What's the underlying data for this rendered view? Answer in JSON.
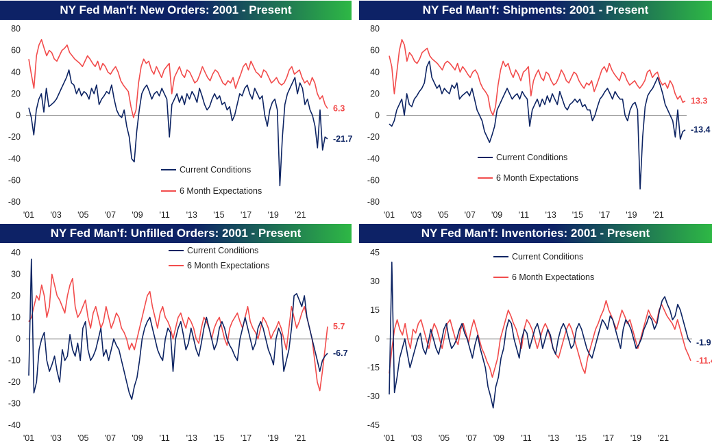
{
  "colors": {
    "current": "#0d2463",
    "expectations": "#f24c4c",
    "title_gradient_start": "#0d2266",
    "title_gradient_end": "#2eb845"
  },
  "legend": {
    "current": "Current Conditions",
    "expectations": "6 Month Expectations"
  },
  "chart_data": [
    {
      "type": "line",
      "title": "NY Fed Man'f: New Orders: 2001 - Present",
      "ylim": [
        -80,
        80
      ],
      "yticks": [
        "80",
        "60",
        "40",
        "20",
        "0",
        "-20",
        "-40",
        "-60",
        "-80"
      ],
      "xticks": [
        "'01",
        "'03",
        "'05",
        "'07",
        "'09",
        "'11",
        "'13",
        "'15",
        "'17",
        "'19",
        "'21"
      ],
      "end_labels": {
        "current": "-21.7",
        "expectations": "6.3"
      },
      "series": [
        {
          "name": "Current Conditions",
          "values": [
            7,
            -2,
            -18,
            5,
            15,
            20,
            3,
            25,
            8,
            10,
            12,
            15,
            20,
            25,
            30,
            35,
            42,
            30,
            28,
            20,
            25,
            18,
            22,
            20,
            15,
            25,
            20,
            28,
            10,
            15,
            18,
            22,
            20,
            28,
            15,
            5,
            0,
            -2,
            5,
            -10,
            -20,
            -40,
            -43,
            -15,
            5,
            20,
            25,
            28,
            22,
            15,
            20,
            22,
            18,
            25,
            20,
            15,
            -20,
            10,
            15,
            20,
            12,
            18,
            10,
            20,
            15,
            22,
            18,
            12,
            25,
            18,
            10,
            5,
            8,
            15,
            20,
            15,
            18,
            10,
            12,
            5,
            8,
            -5,
            0,
            10,
            20,
            18,
            25,
            28,
            20,
            15,
            25,
            20,
            15,
            18,
            0,
            -10,
            5,
            12,
            15,
            5,
            -65,
            -20,
            10,
            20,
            25,
            30,
            35,
            20,
            30,
            25,
            10,
            15,
            5,
            0,
            -10,
            -30,
            5,
            -32,
            -20,
            -21.7
          ]
        },
        {
          "name": "6 Month Expectations",
          "values": [
            52,
            38,
            25,
            55,
            65,
            70,
            62,
            55,
            60,
            58,
            52,
            50,
            55,
            60,
            62,
            65,
            58,
            55,
            52,
            50,
            48,
            45,
            50,
            55,
            52,
            48,
            45,
            50,
            42,
            48,
            45,
            40,
            38,
            42,
            45,
            40,
            32,
            28,
            25,
            22,
            8,
            -2,
            5,
            30,
            45,
            52,
            48,
            50,
            42,
            38,
            45,
            40,
            35,
            42,
            45,
            48,
            20,
            35,
            40,
            45,
            38,
            35,
            42,
            40,
            35,
            30,
            32,
            38,
            45,
            40,
            35,
            32,
            38,
            42,
            40,
            35,
            30,
            28,
            32,
            30,
            35,
            25,
            32,
            38,
            45,
            48,
            42,
            50,
            45,
            40,
            38,
            35,
            42,
            40,
            35,
            30,
            32,
            35,
            30,
            28,
            30,
            35,
            42,
            45,
            38,
            40,
            42,
            35,
            30,
            32,
            28,
            35,
            30,
            20,
            15,
            18,
            10,
            6.3
          ]
        }
      ]
    },
    {
      "type": "line",
      "title": "NY Fed Man'f: Shipments: 2001 - Present",
      "ylim": [
        -80,
        80
      ],
      "yticks": [
        "80",
        "60",
        "40",
        "20",
        "0",
        "-20",
        "-40",
        "-60",
        "-80"
      ],
      "xticks": [
        "'01",
        "'03",
        "'05",
        "'07",
        "'09",
        "'11",
        "'13",
        "'15",
        "'17",
        "'19",
        "'21"
      ],
      "end_labels": {
        "current": "-13.4",
        "expectations": "13.3"
      },
      "series": [
        {
          "name": "Current Conditions",
          "values": [
            -8,
            -10,
            -5,
            5,
            10,
            15,
            0,
            20,
            10,
            8,
            15,
            18,
            22,
            25,
            30,
            45,
            50,
            35,
            30,
            25,
            28,
            20,
            25,
            22,
            20,
            28,
            25,
            30,
            15,
            18,
            20,
            22,
            18,
            25,
            15,
            5,
            0,
            -5,
            -15,
            -20,
            -25,
            -18,
            -10,
            5,
            10,
            15,
            20,
            25,
            20,
            15,
            18,
            20,
            15,
            22,
            18,
            15,
            -10,
            5,
            10,
            15,
            8,
            15,
            10,
            18,
            12,
            20,
            15,
            10,
            22,
            15,
            8,
            5,
            10,
            12,
            15,
            12,
            15,
            8,
            10,
            5,
            5,
            -5,
            0,
            8,
            15,
            18,
            22,
            25,
            20,
            15,
            22,
            18,
            15,
            15,
            0,
            -5,
            5,
            10,
            12,
            5,
            -68,
            -20,
            8,
            18,
            22,
            25,
            30,
            35,
            28,
            20,
            10,
            5,
            0,
            -5,
            -20,
            5,
            -22,
            -15,
            -13.4
          ]
        },
        {
          "name": "6 Month Expectations",
          "values": [
            55,
            45,
            20,
            40,
            60,
            70,
            65,
            50,
            58,
            55,
            50,
            48,
            52,
            58,
            60,
            62,
            55,
            52,
            50,
            48,
            45,
            42,
            48,
            50,
            48,
            45,
            42,
            48,
            40,
            45,
            42,
            38,
            35,
            40,
            42,
            38,
            30,
            25,
            22,
            18,
            5,
            0,
            8,
            28,
            42,
            50,
            45,
            48,
            40,
            35,
            42,
            38,
            32,
            40,
            42,
            45,
            18,
            32,
            38,
            42,
            35,
            32,
            40,
            38,
            32,
            28,
            30,
            35,
            42,
            38,
            32,
            30,
            35,
            40,
            38,
            32,
            28,
            25,
            30,
            28,
            32,
            22,
            28,
            35,
            42,
            45,
            40,
            48,
            42,
            38,
            35,
            32,
            40,
            38,
            32,
            28,
            30,
            32,
            28,
            25,
            28,
            32,
            40,
            42,
            35,
            38,
            40,
            32,
            28,
            30,
            25,
            32,
            28,
            20,
            15,
            18,
            12,
            13.3
          ]
        }
      ]
    },
    {
      "type": "line",
      "title": "NY Fed Man'f: Unfilled Orders: 2001 - Present",
      "ylim": [
        -40,
        40
      ],
      "yticks": [
        "40",
        "30",
        "20",
        "10",
        "0",
        "-10",
        "-20",
        "-30",
        "-40"
      ],
      "xticks": [
        "'01",
        "'03",
        "'05",
        "'07",
        "'09",
        "'11",
        "'13",
        "'15",
        "'17",
        "'19",
        "'21"
      ],
      "end_labels": {
        "current": "-6.7",
        "expectations": "5.7"
      },
      "series": [
        {
          "name": "Current Conditions",
          "values": [
            -17,
            37,
            -25,
            -20,
            -5,
            0,
            3,
            -10,
            -15,
            -12,
            -8,
            -15,
            -20,
            -5,
            -10,
            -8,
            2,
            -5,
            -8,
            -2,
            -10,
            5,
            8,
            -5,
            -10,
            -8,
            -5,
            0,
            5,
            -8,
            -5,
            -10,
            -5,
            0,
            -3,
            -5,
            -10,
            -15,
            -20,
            -25,
            -28,
            -22,
            -18,
            -10,
            0,
            5,
            8,
            10,
            5,
            0,
            -5,
            -8,
            -10,
            0,
            5,
            3,
            -15,
            0,
            5,
            8,
            2,
            -5,
            -2,
            5,
            0,
            -5,
            -8,
            -2,
            5,
            10,
            5,
            0,
            -5,
            -2,
            5,
            8,
            5,
            0,
            -3,
            -5,
            -8,
            -10,
            0,
            5,
            10,
            5,
            0,
            -5,
            -2,
            5,
            8,
            5,
            0,
            -5,
            -8,
            -12,
            0,
            5,
            2,
            -15,
            -10,
            -5,
            5,
            20,
            21,
            18,
            15,
            20,
            10,
            5,
            0,
            -5,
            -10,
            -15,
            -10,
            -8,
            -6.7
          ]
        },
        {
          "name": "6 Month Expectations",
          "values": [
            8,
            10,
            15,
            20,
            18,
            25,
            20,
            10,
            15,
            30,
            25,
            20,
            18,
            15,
            12,
            20,
            25,
            28,
            15,
            10,
            12,
            15,
            18,
            10,
            5,
            12,
            15,
            10,
            5,
            8,
            15,
            10,
            5,
            8,
            12,
            10,
            5,
            3,
            0,
            -5,
            -2,
            -5,
            0,
            5,
            10,
            15,
            20,
            22,
            15,
            10,
            5,
            12,
            15,
            10,
            8,
            5,
            0,
            5,
            10,
            12,
            8,
            5,
            10,
            8,
            5,
            0,
            -2,
            5,
            10,
            8,
            5,
            0,
            5,
            8,
            10,
            5,
            0,
            -3,
            5,
            8,
            10,
            12,
            8,
            5,
            10,
            15,
            8,
            5,
            3,
            0,
            5,
            10,
            8,
            5,
            0,
            3,
            5,
            8,
            5,
            0,
            -5,
            5,
            15,
            10,
            5,
            8,
            12,
            15,
            10,
            5,
            0,
            -10,
            -20,
            -24,
            -15,
            -5,
            5.7
          ]
        }
      ]
    },
    {
      "type": "line",
      "title": "NY Fed Man'f: Inventories: 2001 - Present",
      "ylim": [
        -45,
        45
      ],
      "yticks": [
        "45",
        "30",
        "15",
        "0",
        "-15",
        "-30",
        "-45"
      ],
      "xticks": [
        "'01",
        "'03",
        "'05",
        "'07",
        "'09",
        "'11",
        "'13",
        "'15",
        "'17",
        "'19",
        "'21"
      ],
      "end_labels": {
        "current": "-1.9",
        "expectations": "-11.4"
      },
      "series": [
        {
          "name": "Current Conditions",
          "values": [
            -29,
            40,
            -28,
            -20,
            -10,
            -5,
            0,
            -8,
            -15,
            -10,
            -5,
            0,
            3,
            -5,
            -8,
            -2,
            5,
            0,
            -5,
            -8,
            -2,
            5,
            8,
            0,
            -5,
            -3,
            0,
            5,
            8,
            3,
            0,
            -5,
            -10,
            -3,
            2,
            -5,
            -10,
            -15,
            -25,
            -30,
            -36,
            -25,
            -20,
            -10,
            -5,
            5,
            10,
            8,
            0,
            -5,
            -10,
            0,
            5,
            3,
            -5,
            0,
            5,
            8,
            3,
            -5,
            0,
            5,
            2,
            -5,
            -8,
            0,
            5,
            8,
            5,
            0,
            -5,
            -3,
            5,
            8,
            5,
            0,
            -5,
            -8,
            -10,
            -5,
            0,
            5,
            10,
            8,
            5,
            12,
            10,
            5,
            0,
            -5,
            5,
            10,
            8,
            5,
            0,
            -5,
            -3,
            0,
            5,
            8,
            12,
            10,
            5,
            8,
            15,
            20,
            22,
            18,
            15,
            10,
            12,
            18,
            15,
            10,
            5,
            0,
            -1.9
          ]
        },
        {
          "name": "6 Month Expectations",
          "values": [
            -18,
            -5,
            5,
            10,
            5,
            2,
            8,
            0,
            -5,
            5,
            3,
            8,
            10,
            5,
            0,
            -5,
            3,
            8,
            5,
            0,
            -5,
            2,
            8,
            10,
            5,
            0,
            -3,
            5,
            8,
            3,
            -2,
            5,
            10,
            5,
            0,
            -5,
            -8,
            -12,
            -15,
            -20,
            -15,
            -10,
            0,
            5,
            10,
            15,
            12,
            8,
            5,
            0,
            -5,
            5,
            10,
            8,
            5,
            0,
            -5,
            0,
            5,
            8,
            5,
            0,
            -5,
            -8,
            -10,
            -5,
            0,
            5,
            8,
            5,
            0,
            -5,
            -10,
            -15,
            -18,
            -10,
            -5,
            0,
            5,
            8,
            12,
            15,
            20,
            15,
            12,
            8,
            5,
            10,
            15,
            12,
            8,
            10,
            5,
            0,
            -5,
            0,
            5,
            10,
            15,
            12,
            10,
            8,
            15,
            18,
            15,
            12,
            10,
            8,
            5,
            10,
            5,
            0,
            -5,
            -8,
            -11.4
          ]
        }
      ]
    }
  ]
}
